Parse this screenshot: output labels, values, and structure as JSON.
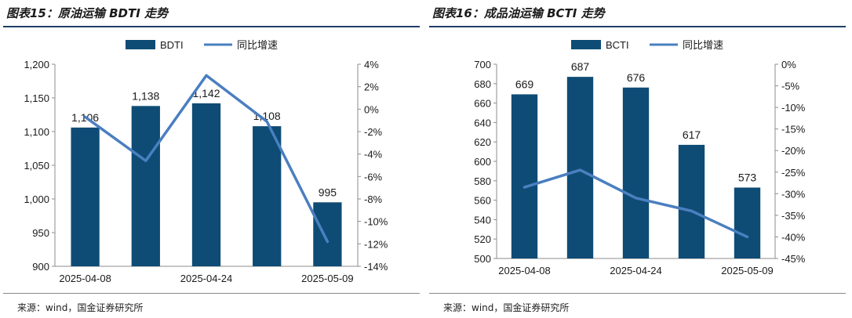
{
  "colors": {
    "bar": "#0e4c75",
    "line": "#4a7fc0",
    "axis": "#8c8c8c",
    "text": "#1a1a1a",
    "rule": "#1f3f66"
  },
  "charts": [
    {
      "title": "图表15：原油运输 BDTI 走势",
      "source": "来源：wind，国金证券研究所"
    },
    {
      "title": "图表16：成品油运输 BCTI 走势",
      "source": "来源：wind，国金证券研究所"
    }
  ],
  "chart_data": [
    {
      "type": "bar",
      "title": "图表15：原油运输 BDTI 走势",
      "categories": [
        "2025-04-08",
        "",
        "2025-04-24",
        "",
        "2025-05-09"
      ],
      "series": [
        {
          "name": "BDTI",
          "type": "bar",
          "axis": "left",
          "values": [
            1106,
            1138,
            1142,
            1108,
            995
          ],
          "labels": [
            "1,106",
            "1,138",
            "1,142",
            "1,108",
            "995"
          ]
        },
        {
          "name": "同比增速",
          "type": "line",
          "axis": "right",
          "values": [
            -0.7,
            -4.6,
            3.0,
            -1.1,
            -11.8
          ]
        }
      ],
      "ylim_left": [
        900,
        1200
      ],
      "yticks_left": [
        "1,200",
        "1,150",
        "1,100",
        "1,050",
        "1,000",
        "950",
        "900"
      ],
      "ylim_right": [
        -14,
        4
      ],
      "yticks_right": [
        "4%",
        "2%",
        "0%",
        "-2%",
        "-4%",
        "-6%",
        "-8%",
        "-10%",
        "-12%",
        "-14%"
      ],
      "legend_position": "top-center",
      "grid": false
    },
    {
      "type": "bar",
      "title": "图表16：成品油运输 BCTI 走势",
      "categories": [
        "2025-04-08",
        "",
        "2025-04-24",
        "",
        "2025-05-09"
      ],
      "series": [
        {
          "name": "BCTI",
          "type": "bar",
          "axis": "left",
          "values": [
            669,
            687,
            676,
            617,
            573
          ],
          "labels": [
            "669",
            "687",
            "676",
            "617",
            "573"
          ]
        },
        {
          "name": "同比增速",
          "type": "line",
          "axis": "right",
          "values": [
            -28.5,
            -24.5,
            -31.0,
            -34.0,
            -40.0
          ]
        }
      ],
      "ylim_left": [
        500,
        700
      ],
      "yticks_left": [
        "700",
        "680",
        "660",
        "640",
        "620",
        "600",
        "580",
        "560",
        "540",
        "520",
        "500"
      ],
      "ylim_right": [
        -45,
        0
      ],
      "yticks_right": [
        "0%",
        "-5%",
        "-10%",
        "-15%",
        "-20%",
        "-25%",
        "-30%",
        "-35%",
        "-40%",
        "-45%"
      ],
      "legend_position": "top-center",
      "grid": false
    }
  ]
}
